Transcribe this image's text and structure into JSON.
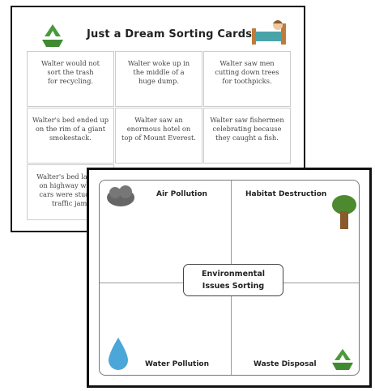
{
  "sorting_cards": {
    "title": "Just a Dream Sorting Cards",
    "cards": [
      [
        [
          "Walter would not",
          "sort the trash",
          "for recycling."
        ],
        [
          "Walter woke up in",
          "the middle of a",
          "huge dump."
        ],
        [
          "Walter saw men",
          "cutting down trees",
          "for toothpicks."
        ]
      ],
      [
        [
          "Walter's bed ended up",
          "on the rim of a giant",
          "smokestack."
        ],
        [
          "Walter saw an",
          "enormous hotel on",
          "top of Mount Everest."
        ],
        [
          "Walter saw fishermen",
          "celebrating because",
          "they caught a fish."
        ]
      ],
      [
        [
          "Walter's bed landed",
          "on highway where",
          "cars were stuck in",
          "traffic jam."
        ]
      ]
    ]
  },
  "sorting_mat": {
    "title": [
      "Environmental",
      "Issues Sorting"
    ],
    "quadrants": [
      "Air Pollution",
      "Habitat Destruction",
      "Water Pollution",
      "Waste Disposal"
    ]
  }
}
